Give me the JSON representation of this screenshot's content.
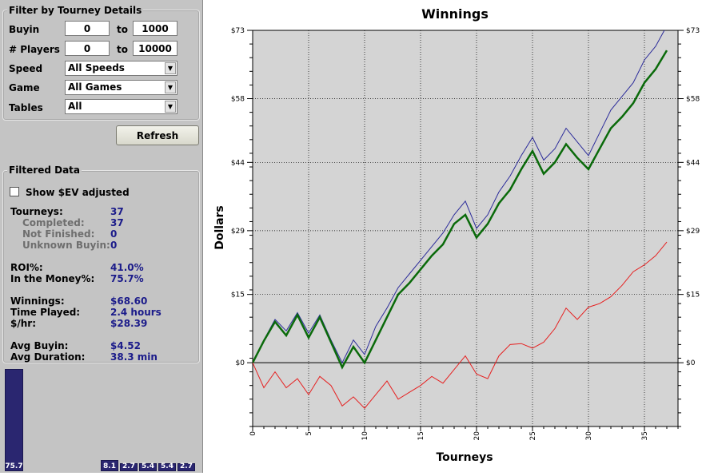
{
  "filter": {
    "title": "Filter by Tourney Details",
    "buyin": {
      "label": "Buyin",
      "min": "0",
      "max": "1000",
      "to": "to"
    },
    "players": {
      "label": "# Players",
      "min": "0",
      "max": "10000",
      "to": "to"
    },
    "speed": {
      "label": "Speed",
      "value": "All Speeds"
    },
    "game": {
      "label": "Game",
      "value": "All Games"
    },
    "tables": {
      "label": "Tables",
      "value": "All"
    },
    "refresh": "Refresh"
  },
  "filtered": {
    "title": "Filtered Data",
    "show_ev": "Show $EV adjusted",
    "stats": [
      {
        "label": "Tourneys:",
        "value": "37",
        "sub": false
      },
      {
        "label": "Completed:",
        "value": "37",
        "sub": true
      },
      {
        "label": "Not Finished:",
        "value": "0",
        "sub": true
      },
      {
        "label": "Unknown Buyin:",
        "value": "0",
        "sub": true
      },
      {
        "label": "ROI%:",
        "value": "41.0%",
        "sub": false
      },
      {
        "label": "In the Money%:",
        "value": "75.7%",
        "sub": false
      },
      {
        "label": "Winnings:",
        "value": "$68.60",
        "sub": false
      },
      {
        "label": "Time Played:",
        "value": "2.4 hours",
        "sub": false
      },
      {
        "label": "$/hr:",
        "value": "$28.39",
        "sub": false
      },
      {
        "label": "Avg Buyin:",
        "value": "$4.52",
        "sub": false
      },
      {
        "label": "Avg Duration:",
        "value": "38.3 min",
        "sub": false
      }
    ]
  },
  "finish_bars": {
    "values": [
      75.7,
      8.1,
      2.7,
      5.4,
      5.4,
      2.7
    ],
    "labels": [
      "75.7",
      "8.1",
      "2.7",
      "5.4",
      "5.4",
      "2.7"
    ],
    "color": "#2a2670"
  },
  "chart_data": {
    "type": "line",
    "title": "Winnings",
    "xlabel": "Tourneys",
    "ylabel": "Dollars",
    "xlim": [
      0,
      38
    ],
    "ylim": [
      -14,
      73
    ],
    "y_ticks": [
      0,
      15,
      29,
      44,
      58,
      73
    ],
    "y_tick_labels": [
      "$0",
      "$15",
      "$29",
      "$44",
      "$58",
      "$73"
    ],
    "x_ticks": [
      0,
      5,
      10,
      15,
      20,
      25,
      30,
      35
    ],
    "x_tick_labels": [
      "0",
      "5",
      "10",
      "15",
      "20",
      "25",
      "30",
      "35"
    ],
    "grid": true,
    "plot_background": "#d4d4d4",
    "series": [
      {
        "color": "#2b2b9a",
        "width": 1,
        "x": [
          0,
          1,
          2,
          3,
          4,
          5,
          6,
          7,
          8,
          9,
          10,
          11,
          12,
          13,
          14,
          15,
          16,
          17,
          18,
          19,
          20,
          21,
          22,
          23,
          24,
          25,
          26,
          27,
          28,
          29,
          30,
          31,
          32,
          33,
          34,
          35,
          36,
          37
        ],
        "values": [
          0,
          5,
          9.5,
          7,
          11,
          6.5,
          10.5,
          5,
          0,
          5,
          1.8,
          8,
          12,
          16.5,
          19.5,
          22.5,
          25.5,
          28.5,
          32.5,
          35.5,
          29.5,
          32.5,
          37.5,
          41,
          45.5,
          49.5,
          44.5,
          47,
          51.5,
          48.5,
          45.5,
          50.5,
          55.5,
          58.5,
          61.5,
          66.5,
          69.5,
          74
        ]
      },
      {
        "color": "#0a6a0a",
        "width": 2.5,
        "x": [
          0,
          1,
          2,
          3,
          4,
          5,
          6,
          7,
          8,
          9,
          10,
          11,
          12,
          13,
          14,
          15,
          16,
          17,
          18,
          19,
          20,
          21,
          22,
          23,
          24,
          25,
          26,
          27,
          28,
          29,
          30,
          31,
          32,
          33,
          34,
          35,
          36,
          37
        ],
        "values": [
          0,
          4.8,
          9,
          6,
          10.5,
          5.5,
          10,
          4.5,
          -1,
          3.5,
          0,
          5,
          10,
          15,
          17.5,
          20.5,
          23.5,
          26,
          30.5,
          32.5,
          27.5,
          30.5,
          35,
          38,
          42.5,
          46.5,
          41.5,
          44,
          48,
          45,
          42.5,
          47,
          51.5,
          54,
          57,
          61.5,
          64.5,
          68.6
        ]
      },
      {
        "color": "#e62020",
        "width": 1,
        "x": [
          0,
          1,
          2,
          3,
          4,
          5,
          6,
          7,
          8,
          9,
          10,
          11,
          12,
          13,
          14,
          15,
          16,
          17,
          18,
          19,
          20,
          21,
          22,
          23,
          24,
          25,
          26,
          27,
          28,
          29,
          30,
          31,
          32,
          33,
          34,
          35,
          36,
          37
        ],
        "values": [
          0,
          -5.5,
          -2,
          -5.5,
          -3.5,
          -7,
          -3,
          -5,
          -9.5,
          -7.5,
          -10,
          -7,
          -4,
          -8,
          -6.5,
          -5,
          -3,
          -4.5,
          -1.5,
          1.5,
          -2.5,
          -3.5,
          1.5,
          4,
          4.2,
          3.2,
          4.5,
          7.5,
          12,
          9.5,
          12.2,
          13,
          14.5,
          17,
          20,
          21.5,
          23.5,
          26.5
        ]
      }
    ]
  }
}
